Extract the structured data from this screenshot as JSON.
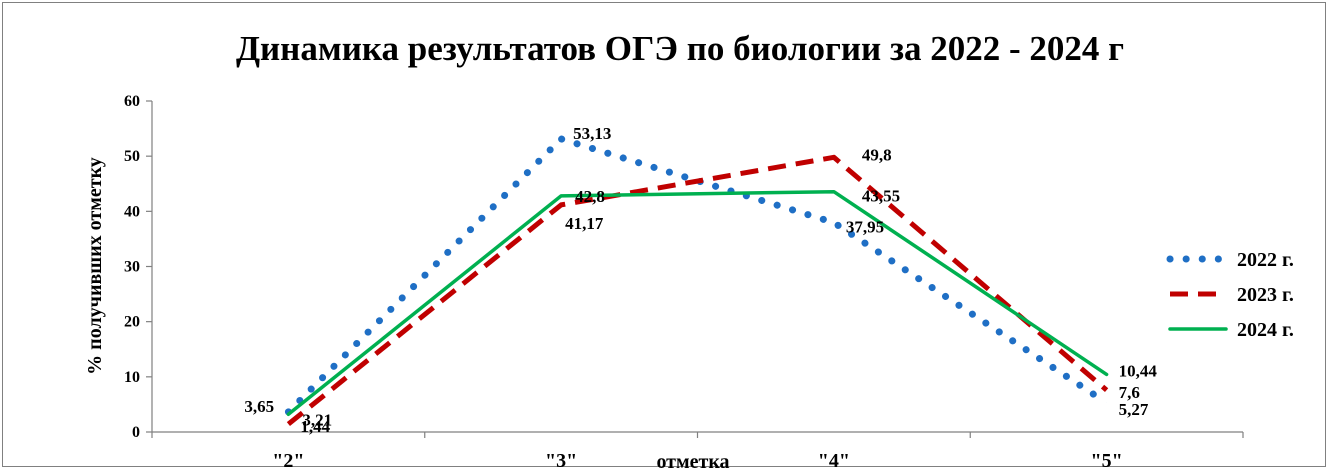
{
  "chart_data": {
    "type": "line",
    "title": "Динамика результатов  ОГЭ по биологии за 2022 - 2024 г",
    "xlabel": "отметка",
    "ylabel": "% получивших отметку",
    "categories": [
      "\"2\"",
      "\"3\"",
      "\"4\"",
      "\"5\""
    ],
    "ylim": [
      0,
      60
    ],
    "yticks": [
      0,
      10,
      20,
      30,
      40,
      50,
      60
    ],
    "legend_position": "right",
    "series": [
      {
        "name": "2022 г.",
        "values": [
          3.65,
          53.13,
          37.95,
          5.27
        ],
        "labels": [
          "3,65",
          "53,13",
          "37,95",
          "5,27"
        ],
        "color": "#1f6fc5",
        "style": "dotted"
      },
      {
        "name": "2023 г.",
        "values": [
          1.44,
          41.17,
          49.8,
          7.6
        ],
        "labels": [
          "1,44",
          "41,17",
          "49,8",
          "7,6"
        ],
        "color": "#c00000",
        "style": "dashed"
      },
      {
        "name": "2024 г.",
        "values": [
          3.21,
          42.8,
          43.55,
          10.44
        ],
        "labels": [
          "3,21",
          "42,8",
          "43,55",
          "10,44"
        ],
        "color": "#00b050",
        "style": "solid"
      }
    ]
  }
}
